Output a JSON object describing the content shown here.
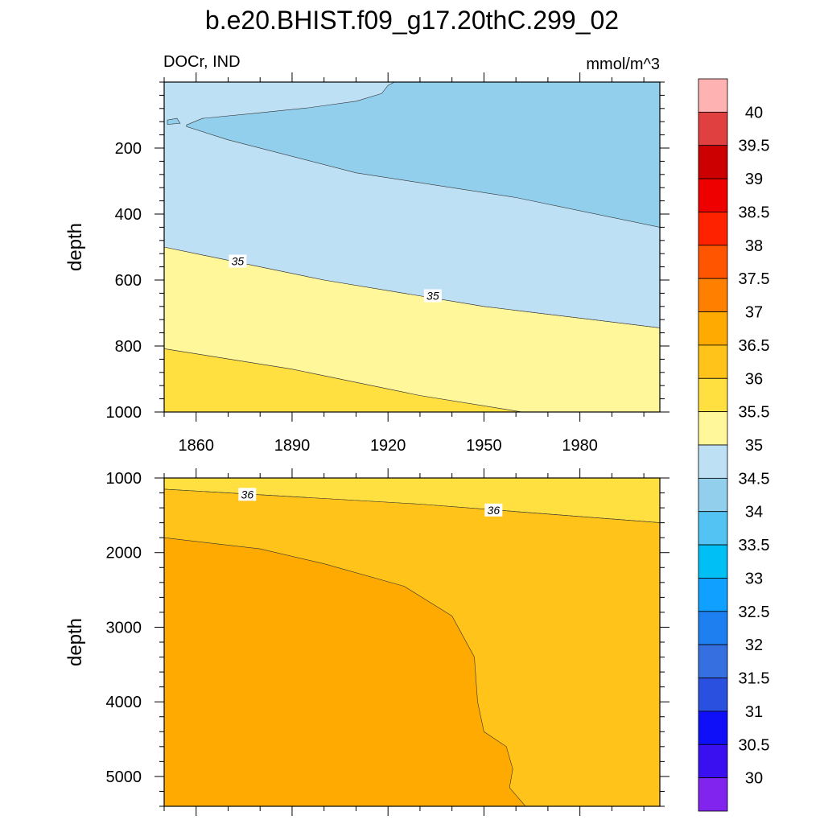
{
  "title": "b.e20.BHIST.f09_g17.20thC.299_02",
  "variable_label": "DOCr, IND",
  "units_label": "mmol/m^3",
  "colorbar": {
    "levels": [
      "40",
      "39.5",
      "39",
      "38.5",
      "38",
      "37.5",
      "37",
      "36.5",
      "36",
      "35.5",
      "35",
      "34.5",
      "34",
      "33.5",
      "33",
      "32.5",
      "32",
      "31.5",
      "31",
      "30.5",
      "30"
    ],
    "colors": [
      "#FFB2B2",
      "#E04040",
      "#CC0000",
      "#EE0000",
      "#FF2200",
      "#FF5500",
      "#FF8000",
      "#FFAA00",
      "#FFC31A",
      "#FFE040",
      "#FFF79A",
      "#BEE0F5",
      "#92CFEC",
      "#52C3F2",
      "#00BFF5",
      "#10A0FF",
      "#1E80F0",
      "#3670E0",
      "#2A50E0",
      "#1010F8",
      "#3A10F0",
      "#8024EE"
    ]
  },
  "chart_data": [
    {
      "type": "contour",
      "panel": "upper",
      "xlabel": "",
      "ylabel": "depth",
      "xlim": [
        1850,
        2005
      ],
      "ylim": [
        1000,
        0
      ],
      "xticks": [
        1860,
        1890,
        1920,
        1950,
        1980
      ],
      "xtick_labels": [
        "1860",
        "1890",
        "1920",
        "1950",
        "1980"
      ],
      "yticks": [
        200,
        400,
        600,
        800,
        1000
      ],
      "ytick_labels": [
        "200",
        "400",
        "600",
        "800",
        "1000"
      ],
      "regions": [
        {
          "level": "35.5-36",
          "color": "#FFE040",
          "boundary": [
            [
              1850,
              808
            ],
            [
              1890,
              870
            ],
            [
              1930,
              950
            ],
            [
              1962,
              1000
            ],
            [
              1850,
              1000
            ]
          ]
        },
        {
          "level": "35-35.5",
          "color": "#FFF79A",
          "boundary": [
            [
              1850,
              500
            ],
            [
              1900,
              600
            ],
            [
              1950,
              680
            ],
            [
              2005,
              745
            ],
            [
              2005,
              1000
            ],
            [
              1962,
              1000
            ],
            [
              1930,
              950
            ],
            [
              1890,
              870
            ],
            [
              1850,
              808
            ]
          ]
        },
        {
          "level": "34.5-35",
          "color": "#BEE0F5",
          "boundary": [
            [
              1850,
              0
            ],
            [
              2005,
              0
            ],
            [
              2005,
              745
            ],
            [
              1950,
              680
            ],
            [
              1900,
              600
            ],
            [
              1850,
              500
            ]
          ]
        },
        {
          "level": "34-34.5",
          "color": "#92CFEC",
          "boundary": [
            [
              1857,
              130
            ],
            [
              1862,
              110
            ],
            [
              1878,
              95
            ],
            [
              1895,
              78
            ],
            [
              1910,
              58
            ],
            [
              1918,
              35
            ],
            [
              1920,
              10
            ],
            [
              1922,
              0
            ],
            [
              2005,
              0
            ],
            [
              2005,
              440
            ],
            [
              1960,
              350
            ],
            [
              1910,
              275
            ],
            [
              1870,
              175
            ],
            [
              1857,
              135
            ]
          ]
        },
        {
          "level": "34-34.5",
          "color": "#92CFEC",
          "boundary": [
            [
              1851,
              115
            ],
            [
              1854,
              110
            ],
            [
              1855,
              125
            ],
            [
              1851,
              128
            ]
          ]
        }
      ],
      "contour_labels": [
        {
          "value": "35",
          "x": 1873,
          "y": 545
        },
        {
          "value": "35",
          "x": 1934,
          "y": 650
        }
      ]
    },
    {
      "type": "contour",
      "panel": "lower",
      "xlabel": "",
      "ylabel": "depth",
      "xlim": [
        1850,
        2005
      ],
      "ylim": [
        5400,
        1000
      ],
      "yticks": [
        1000,
        2000,
        3000,
        4000,
        5000
      ],
      "ytick_labels": [
        "1000",
        "2000",
        "3000",
        "4000",
        "5000"
      ],
      "regions": [
        {
          "level": "35.5-36",
          "color": "#FFE040",
          "boundary": [
            [
              1850,
              1000
            ],
            [
              2005,
              1000
            ],
            [
              2005,
              1600
            ],
            [
              1930,
              1350
            ],
            [
              1850,
              1150
            ]
          ]
        },
        {
          "level": "36-36.5",
          "color": "#FFC31A",
          "boundary": [
            [
              1850,
              1150
            ],
            [
              1930,
              1350
            ],
            [
              2005,
              1600
            ],
            [
              2005,
              5400
            ],
            [
              1850,
              5400
            ]
          ]
        },
        {
          "level": "36.5-37",
          "color": "#FFAA00",
          "boundary": [
            [
              1850,
              1800
            ],
            [
              1880,
              1950
            ],
            [
              1900,
              2150
            ],
            [
              1925,
              2450
            ],
            [
              1940,
              2850
            ],
            [
              1947,
              3400
            ],
            [
              1948,
              4000
            ],
            [
              1950,
              4400
            ],
            [
              1957,
              4600
            ],
            [
              1959,
              4900
            ],
            [
              1958,
              5150
            ],
            [
              1963,
              5400
            ],
            [
              1850,
              5400
            ]
          ]
        }
      ],
      "contour_labels": [
        {
          "value": "36",
          "x": 1876,
          "y": 1230
        },
        {
          "value": "36",
          "x": 1953,
          "y": 1440
        }
      ]
    }
  ]
}
